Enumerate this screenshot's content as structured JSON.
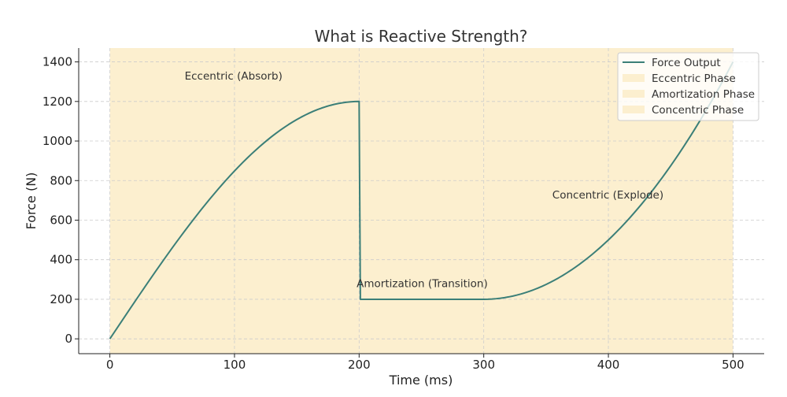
{
  "chart_data": {
    "type": "line",
    "title": "What is Reactive Strength?",
    "xlabel": "Time (ms)",
    "ylabel": "Force (N)",
    "xlim": [
      -25,
      525
    ],
    "ylim": [
      -75,
      1470
    ],
    "xticks": [
      0,
      100,
      200,
      300,
      400,
      500
    ],
    "yticks": [
      0,
      200,
      400,
      600,
      800,
      1000,
      1200,
      1400
    ],
    "grid": true,
    "legend_position": "top-right",
    "colors": {
      "line": "#3b7f78",
      "phase_fill": "#fcefcf",
      "grid": "#cccccc",
      "axis": "#222222"
    },
    "series": [
      {
        "name": "Force Output",
        "segments": [
          {
            "phase": "eccentric",
            "x_range": [
              0,
              200
            ],
            "y_range": [
              0,
              1200
            ],
            "shape": "concave rise"
          },
          {
            "phase": "transition",
            "points": [
              [
                200,
                1200
              ],
              [
                201,
                200
              ]
            ]
          },
          {
            "phase": "amortization",
            "x_range": [
              201,
              300
            ],
            "y_constant": 200
          },
          {
            "phase": "concentric",
            "x_range": [
              300,
              500
            ],
            "y_range": [
              200,
              1400
            ],
            "shape": "convex rise"
          }
        ]
      }
    ],
    "phases": [
      {
        "name": "Eccentric Phase",
        "x_start": 0,
        "x_end": 200
      },
      {
        "name": "Amortization Phase",
        "x_start": 200,
        "x_end": 300
      },
      {
        "name": "Concentric Phase",
        "x_start": 300,
        "x_end": 500
      }
    ],
    "annotations": [
      {
        "text": "Eccentric (Absorb)",
        "x": 60,
        "y": 1310
      },
      {
        "text": "Amortization (Transition)",
        "x": 198,
        "y": 262
      },
      {
        "text": "Concentric (Explode)",
        "x": 355,
        "y": 710
      }
    ],
    "legend": [
      "Force Output",
      "Eccentric Phase",
      "Amortization Phase",
      "Concentric Phase"
    ]
  }
}
